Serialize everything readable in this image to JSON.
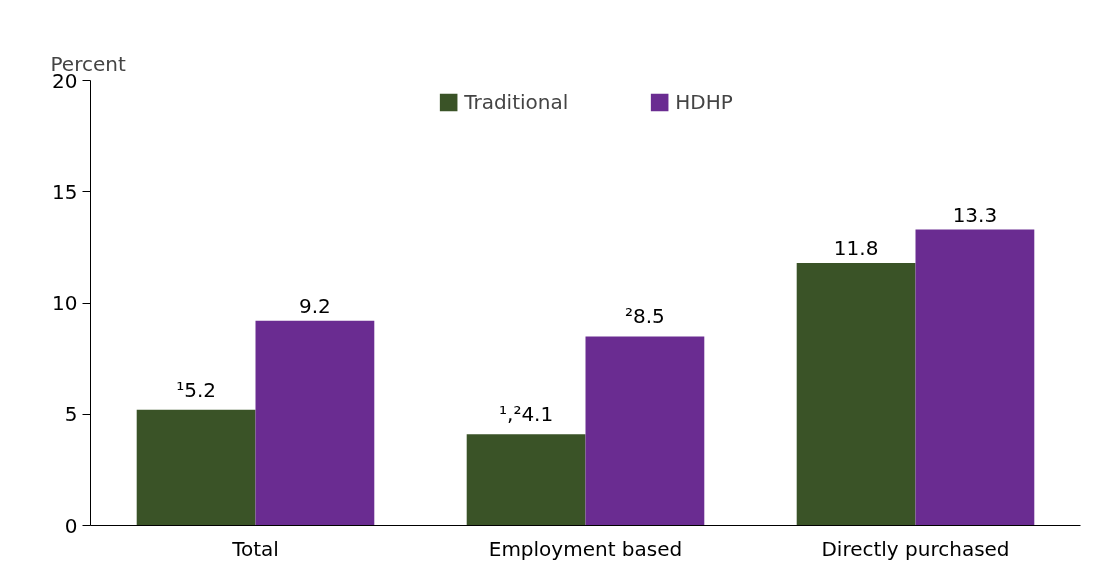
{
  "chart_data": {
    "type": "bar",
    "ylabel": "Percent",
    "categories": [
      "Total",
      "Employment based",
      "Directly purchased"
    ],
    "series": [
      {
        "name": "Traditional",
        "color": "#3a5327",
        "values": [
          5.2,
          4.1,
          11.8
        ],
        "value_labels": [
          "¹5.2",
          "¹,²4.1",
          "11.8"
        ]
      },
      {
        "name": "HDHP",
        "color": "#6a2c91",
        "values": [
          9.2,
          8.5,
          13.3
        ],
        "value_labels": [
          "9.2",
          "²8.5",
          "13.3"
        ]
      }
    ],
    "ylim": [
      0,
      20
    ],
    "yticks": [
      0,
      5,
      10,
      15,
      20
    ],
    "grid": false,
    "legend": "top"
  }
}
